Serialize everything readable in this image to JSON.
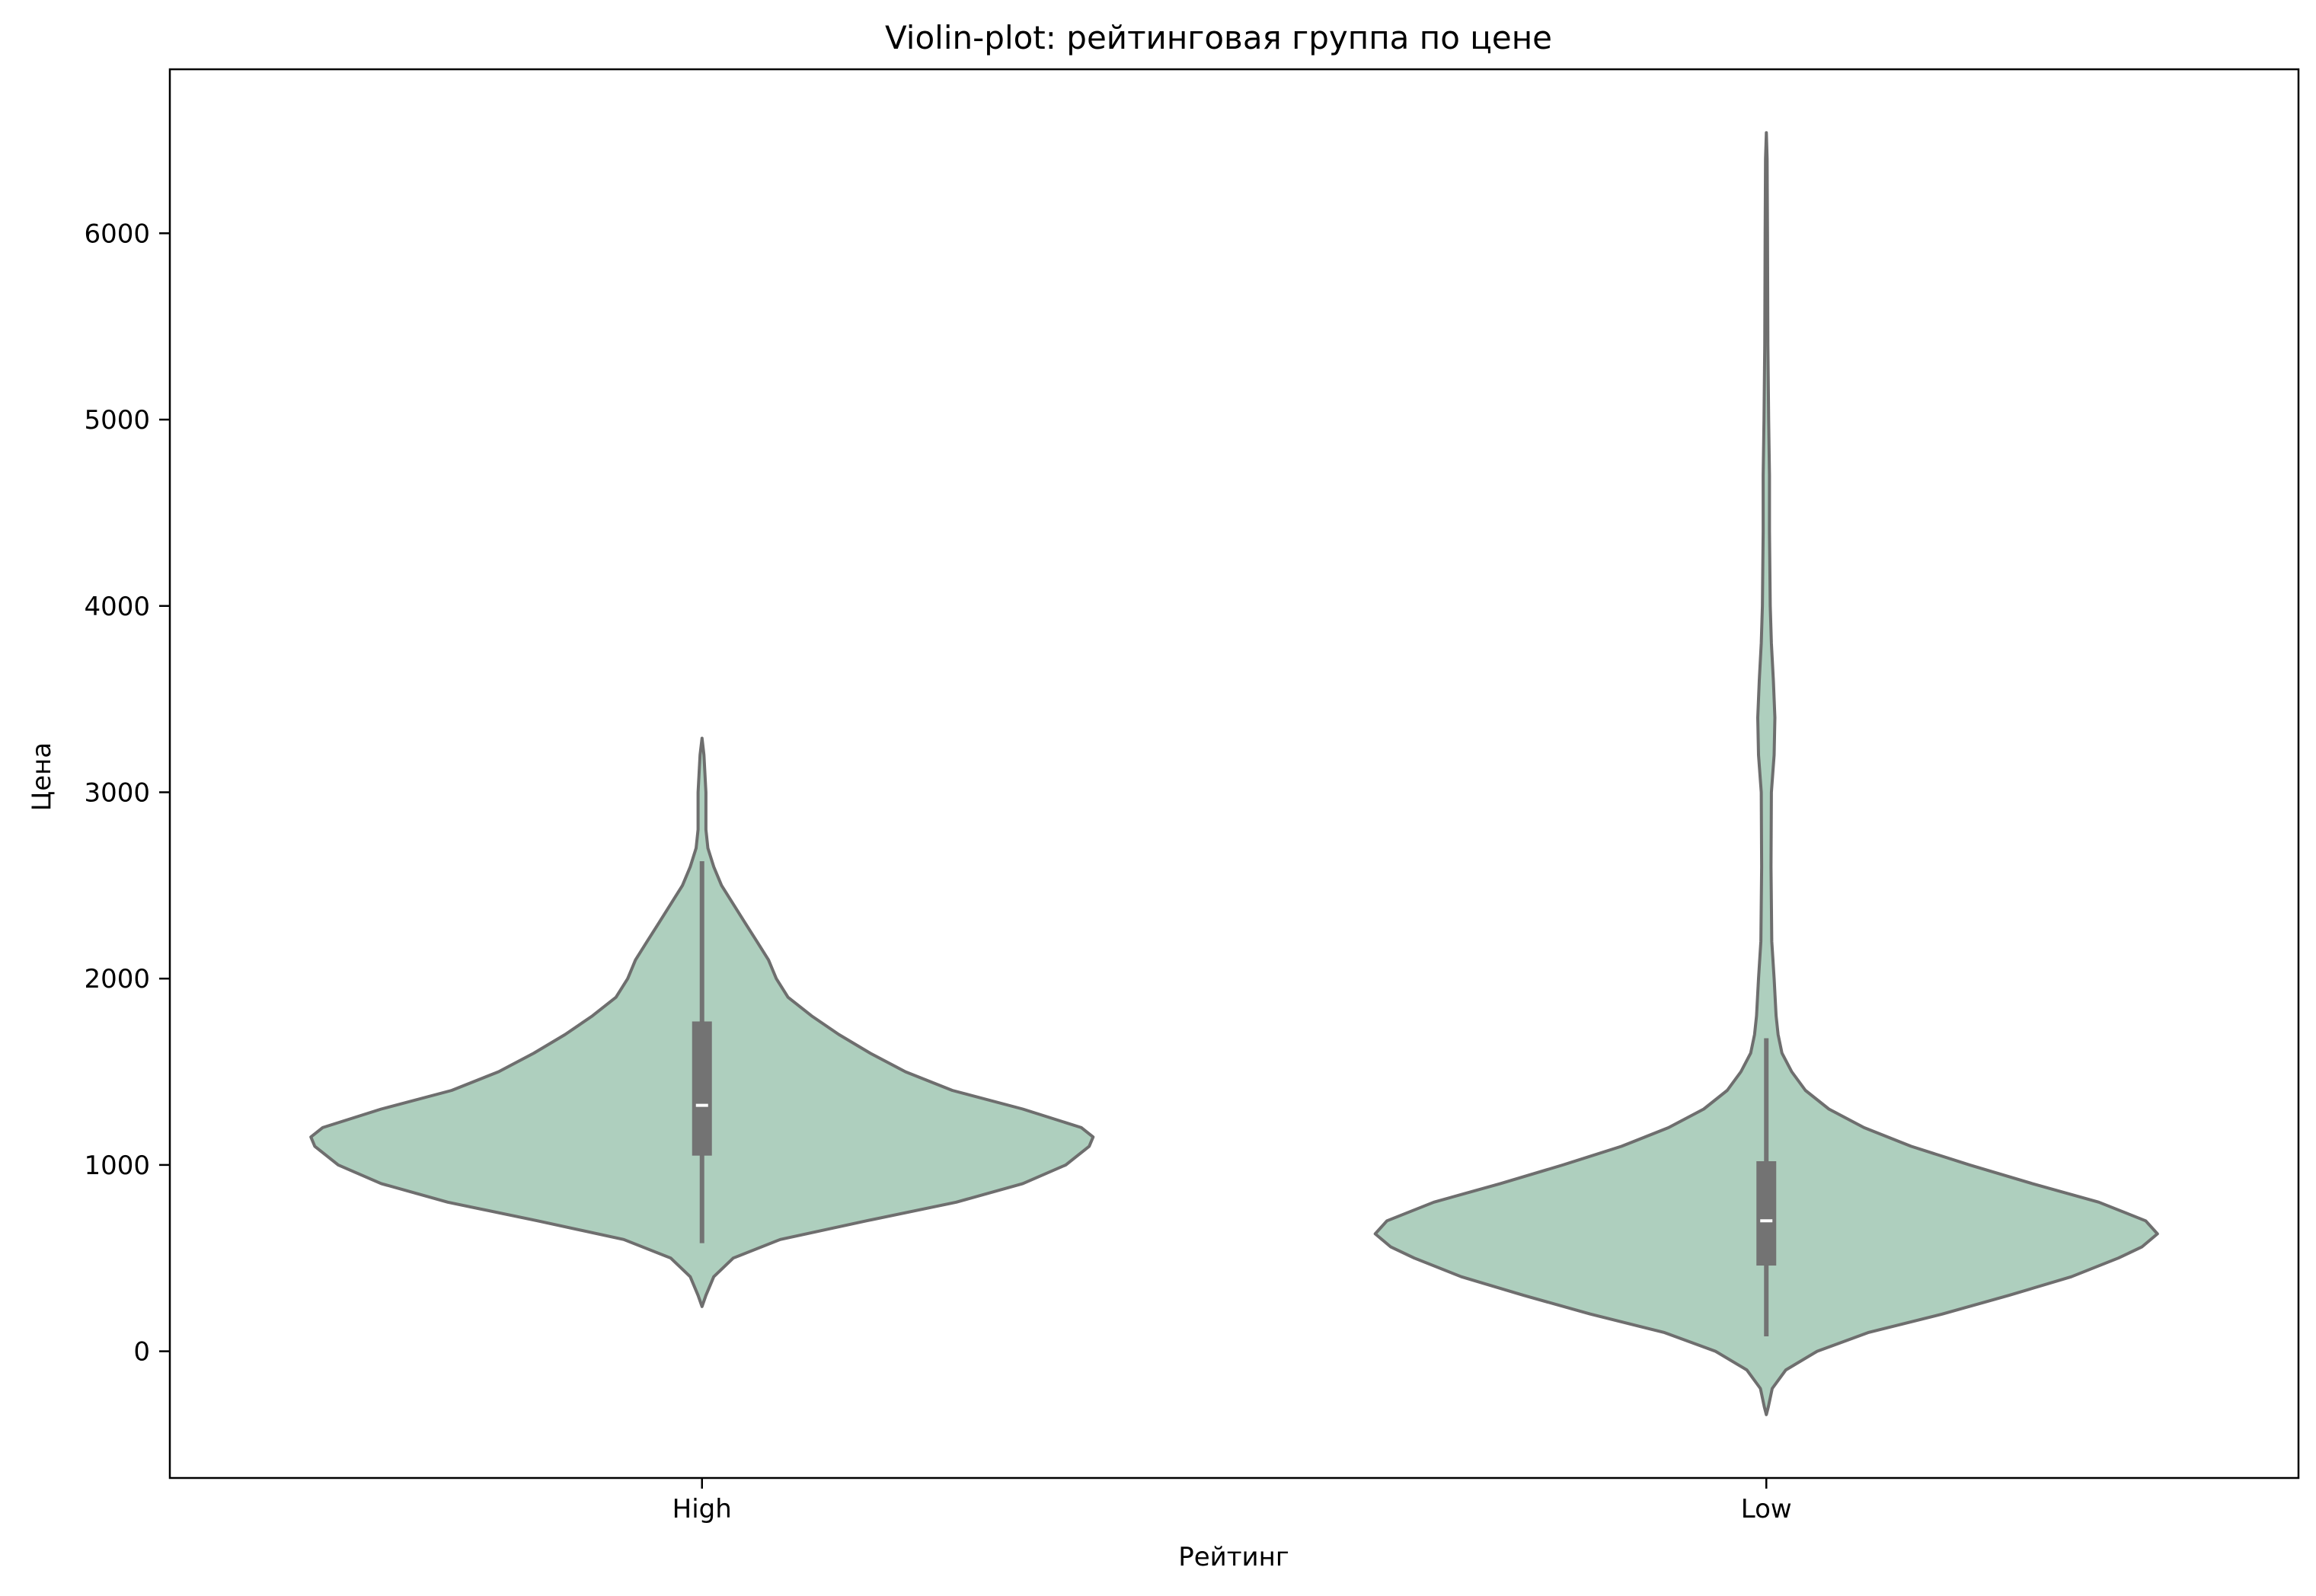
{
  "chart_data": {
    "type": "violin",
    "title": "Violin-plot: рейтинговая группа по цене",
    "xlabel": "Рейтинг",
    "ylabel": "Цена",
    "categories": [
      "High",
      "Low"
    ],
    "yticks": [
      0,
      1000,
      2000,
      3000,
      4000,
      5000,
      6000
    ],
    "ylim": [
      -680,
      6880
    ],
    "grid": false,
    "colors": {
      "fill": "#aecfbe",
      "stroke": "#6e6e6e",
      "box": "#737373",
      "median": "#ffffff",
      "axes": "#000000"
    },
    "violins": [
      {
        "category": "High",
        "box": {
          "q1": 1050,
          "median": 1320,
          "q3": 1770,
          "whisker_low": 580,
          "whisker_high": 2630
        },
        "density": [
          [
            240,
            0.0
          ],
          [
            300,
            0.01
          ],
          [
            400,
            0.03
          ],
          [
            500,
            0.08
          ],
          [
            600,
            0.2
          ],
          [
            700,
            0.42
          ],
          [
            800,
            0.65
          ],
          [
            900,
            0.82
          ],
          [
            1000,
            0.93
          ],
          [
            1100,
            0.99
          ],
          [
            1150,
            1.0
          ],
          [
            1200,
            0.97
          ],
          [
            1300,
            0.82
          ],
          [
            1400,
            0.64
          ],
          [
            1500,
            0.52
          ],
          [
            1600,
            0.43
          ],
          [
            1700,
            0.35
          ],
          [
            1800,
            0.28
          ],
          [
            1900,
            0.22
          ],
          [
            2000,
            0.19
          ],
          [
            2100,
            0.17
          ],
          [
            2200,
            0.14
          ],
          [
            2300,
            0.11
          ],
          [
            2400,
            0.08
          ],
          [
            2500,
            0.05
          ],
          [
            2600,
            0.03
          ],
          [
            2700,
            0.015
          ],
          [
            2800,
            0.01
          ],
          [
            3000,
            0.01
          ],
          [
            3200,
            0.005
          ],
          [
            3290,
            0.0
          ]
        ]
      },
      {
        "category": "Low",
        "box": {
          "q1": 460,
          "median": 700,
          "q3": 1020,
          "whisker_low": 80,
          "whisker_high": 1680
        },
        "density": [
          [
            -340,
            0.0
          ],
          [
            -300,
            0.005
          ],
          [
            -200,
            0.015
          ],
          [
            -100,
            0.05
          ],
          [
            0,
            0.13
          ],
          [
            100,
            0.26
          ],
          [
            200,
            0.45
          ],
          [
            300,
            0.62
          ],
          [
            400,
            0.78
          ],
          [
            500,
            0.9
          ],
          [
            560,
            0.96
          ],
          [
            630,
            1.0
          ],
          [
            700,
            0.97
          ],
          [
            800,
            0.85
          ],
          [
            900,
            0.68
          ],
          [
            1000,
            0.52
          ],
          [
            1100,
            0.37
          ],
          [
            1200,
            0.25
          ],
          [
            1300,
            0.16
          ],
          [
            1400,
            0.1
          ],
          [
            1500,
            0.065
          ],
          [
            1600,
            0.04
          ],
          [
            1700,
            0.03
          ],
          [
            1800,
            0.025
          ],
          [
            2000,
            0.02
          ],
          [
            2200,
            0.014
          ],
          [
            2600,
            0.012
          ],
          [
            3000,
            0.013
          ],
          [
            3200,
            0.02
          ],
          [
            3400,
            0.022
          ],
          [
            3600,
            0.018
          ],
          [
            3800,
            0.013
          ],
          [
            4000,
            0.01
          ],
          [
            4400,
            0.008
          ],
          [
            4700,
            0.008
          ],
          [
            5000,
            0.006
          ],
          [
            5400,
            0.004
          ],
          [
            6000,
            0.003
          ],
          [
            6400,
            0.002
          ],
          [
            6540,
            0.0
          ]
        ]
      }
    ]
  }
}
